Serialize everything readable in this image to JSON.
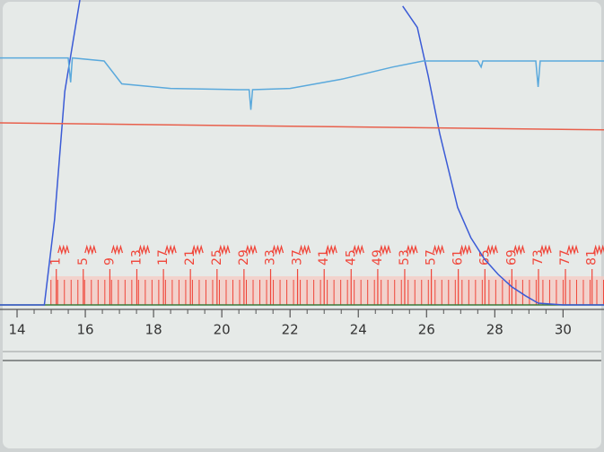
{
  "chart_data": {
    "type": "line",
    "xlim": [
      13.5,
      31.2
    ],
    "ylim": [
      0,
      100
    ],
    "xticks": [
      14,
      16,
      18,
      20,
      22,
      24,
      26,
      28,
      30
    ],
    "series": [
      {
        "color": "#3b5bd6",
        "x": [
          13.5,
          14.8,
          15.1,
          15.4,
          15.84,
          24.81,
          25.3,
          25.73,
          26.05,
          26.39,
          26.91,
          27.3,
          27.7,
          28.1,
          28.49,
          28.9,
          29.27,
          30.0,
          31.2
        ],
        "values": [
          0,
          0,
          28,
          70,
          100,
          null,
          98,
          91,
          75,
          56,
          32,
          22,
          15,
          10,
          6,
          3,
          0.6,
          0,
          0
        ]
      },
      {
        "color": "#5aa9dc",
        "x": [
          13.5,
          15.5,
          15.57,
          15.62,
          16.55,
          17.07,
          18.5,
          20.5,
          20.8,
          20.85,
          20.9,
          22,
          23.5,
          25,
          25.9,
          27.5,
          27.6,
          27.65,
          29.2,
          29.27,
          29.33,
          31.2
        ],
        "values": [
          81,
          81,
          73,
          81,
          80,
          72.5,
          71,
          70.6,
          70.6,
          64,
          70.6,
          71,
          74,
          78,
          80,
          80,
          78,
          80,
          80,
          71.5,
          80,
          80
        ]
      },
      {
        "color": "#e8604c",
        "x": [
          13.5,
          31.2
        ],
        "values": [
          59.7,
          57.4
        ]
      }
    ],
    "fractions": {
      "color": "#f0463a",
      "x": [
        15.15,
        15.94,
        16.72,
        17.51,
        18.29,
        19.08,
        19.86,
        20.65,
        21.43,
        22.22,
        23.0,
        23.79,
        24.57,
        25.36,
        26.14,
        26.93,
        27.71,
        28.5,
        29.28,
        30.07,
        30.85
      ],
      "labels": [
        1,
        5,
        9,
        13,
        17,
        21,
        25,
        29,
        33,
        37,
        41,
        45,
        49,
        53,
        57,
        61,
        65,
        69,
        73,
        77,
        81
      ]
    }
  }
}
